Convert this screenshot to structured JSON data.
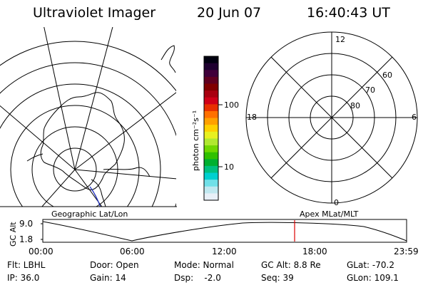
{
  "header": {
    "instrument": "Ultraviolet Imager",
    "date": "20 Jun 07",
    "time": "16:40:43 UT"
  },
  "colorbar": {
    "label": "photon cm⁻²s⁻¹",
    "tick_labels": [
      "100",
      "10"
    ],
    "colors": [
      "#000010",
      "#1e0030",
      "#40003a",
      "#600020",
      "#800000",
      "#a80010",
      "#d00018",
      "#e83000",
      "#ff7000",
      "#ffa000",
      "#ffd000",
      "#e8f020",
      "#b0e830",
      "#70d800",
      "#30c000",
      "#00b030",
      "#00c080",
      "#00d0d0",
      "#70e0e8",
      "#c0e8f0",
      "#e8f0f8"
    ]
  },
  "right_polar": {
    "mlt_labels": [
      "12",
      "18",
      "6",
      "0"
    ],
    "lat_labels": [
      "60",
      "70",
      "80"
    ]
  },
  "timeline": {
    "left_label": "Geographic Lat/Lon",
    "right_label": "Apex MLat/MLT",
    "axis_title": "GC Alt",
    "y_ticks": [
      "9.0",
      "1.8"
    ],
    "x_ticks": [
      "00:00",
      "06:00",
      "12:00",
      "18:00",
      "23:59"
    ],
    "marker_color": "#dd0000"
  },
  "info": {
    "filter": "Flt: LBHL",
    "ip": "IP: 36.0",
    "door": "Door: Open",
    "gain": "Gain: 14",
    "mode": "Mode: Normal",
    "dsp": "Dsp:    -2.0",
    "gc_alt": "GC Alt: 8.8 Re",
    "seq": "Seq: 39",
    "glat": "GLat: -70.2",
    "glon": "GLon: 109.1"
  }
}
